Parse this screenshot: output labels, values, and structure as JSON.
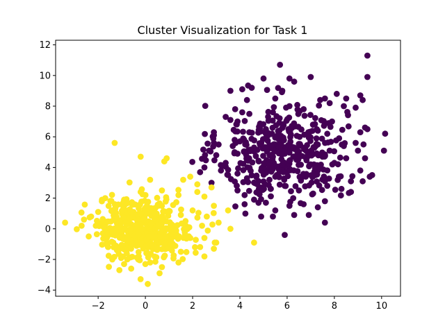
{
  "chart_data": {
    "type": "scatter",
    "title": "Cluster Visualization for Task 1",
    "xlabel": "",
    "ylabel": "",
    "xlim": [
      -3.8,
      10.8
    ],
    "ylim": [
      -4.4,
      12.3
    ],
    "x_ticks": [
      -2,
      0,
      2,
      4,
      6,
      8,
      10
    ],
    "x_tick_labels": [
      "−2",
      "0",
      "2",
      "4",
      "6",
      "8",
      "10"
    ],
    "y_ticks": [
      -4,
      -2,
      0,
      2,
      4,
      6,
      8,
      10,
      12
    ],
    "y_tick_labels": [
      "−4",
      "−2",
      "0",
      "2",
      "4",
      "6",
      "8",
      "10",
      "12"
    ],
    "grid": false,
    "legend": "none",
    "colors": {
      "cluster_a": "#440154",
      "cluster_b": "#fde725"
    },
    "clusters": [
      {
        "color": "#440154",
        "center": [
          5.8,
          5.0
        ],
        "spread": [
          1.35,
          1.55
        ],
        "point_count": 500,
        "points": [
          [
            9.4,
            11.3
          ],
          [
            5.7,
            10.7
          ],
          [
            6.1,
            9.8
          ],
          [
            6.3,
            9.6
          ],
          [
            5.0,
            9.8
          ],
          [
            7.0,
            9.9
          ],
          [
            9.4,
            9.9
          ],
          [
            4.5,
            9.2
          ],
          [
            4.1,
            9.1
          ],
          [
            3.6,
            9.0
          ],
          [
            4.3,
            8.4
          ],
          [
            5.5,
            8.5
          ],
          [
            7.4,
            8.4
          ],
          [
            7.6,
            8.5
          ],
          [
            7.8,
            8.2
          ],
          [
            8.1,
            8.8
          ],
          [
            8.5,
            8.5
          ],
          [
            8.4,
            8.0
          ],
          [
            8.9,
            7.9
          ],
          [
            9.1,
            8.7
          ],
          [
            9.2,
            8.4
          ],
          [
            3.8,
            7.8
          ],
          [
            4.1,
            7.6
          ],
          [
            4.4,
            7.5
          ],
          [
            5.4,
            7.6
          ],
          [
            6.1,
            8.0
          ],
          [
            6.7,
            7.8
          ],
          [
            7.9,
            7.0
          ],
          [
            9.1,
            6.3
          ],
          [
            9.4,
            6.5
          ],
          [
            2.9,
            6.3
          ],
          [
            2.9,
            6.1
          ],
          [
            3.4,
            7.3
          ],
          [
            3.6,
            7.1
          ],
          [
            3.9,
            7.0
          ],
          [
            4.4,
            6.3
          ],
          [
            5.1,
            6.5
          ],
          [
            6.2,
            6.7
          ],
          [
            6.9,
            6.3
          ],
          [
            7.3,
            6.4
          ],
          [
            7.7,
            6.2
          ],
          [
            8.2,
            5.9
          ],
          [
            8.9,
            5.6
          ],
          [
            9.3,
            6.6
          ],
          [
            2.9,
            5.6
          ],
          [
            3.1,
            5.5
          ],
          [
            3.7,
            5.4
          ],
          [
            4.0,
            5.7
          ],
          [
            4.6,
            5.3
          ],
          [
            5.2,
            5.2
          ],
          [
            5.7,
            5.6
          ],
          [
            6.3,
            5.3
          ],
          [
            6.8,
            5.1
          ],
          [
            7.3,
            5.5
          ],
          [
            7.8,
            5.1
          ],
          [
            8.4,
            5.4
          ],
          [
            9.0,
            5.1
          ],
          [
            9.3,
            4.6
          ],
          [
            10.1,
            5.1
          ],
          [
            2.5,
            4.0
          ],
          [
            2.7,
            5.1
          ],
          [
            3.0,
            4.8
          ],
          [
            3.4,
            4.3
          ],
          [
            3.9,
            4.9
          ],
          [
            4.3,
            4.5
          ],
          [
            4.8,
            4.4
          ],
          [
            5.4,
            4.7
          ],
          [
            5.9,
            4.9
          ],
          [
            6.4,
            4.5
          ],
          [
            7.0,
            4.2
          ],
          [
            7.5,
            4.7
          ],
          [
            8.0,
            4.3
          ],
          [
            8.5,
            4.6
          ],
          [
            9.1,
            3.8
          ],
          [
            9.5,
            3.4
          ],
          [
            9.6,
            3.5
          ],
          [
            3.2,
            3.8
          ],
          [
            3.5,
            3.5
          ],
          [
            3.9,
            3.6
          ],
          [
            4.3,
            3.3
          ],
          [
            4.9,
            3.8
          ],
          [
            5.5,
            3.4
          ],
          [
            6.0,
            3.7
          ],
          [
            6.6,
            3.3
          ],
          [
            7.2,
            3.5
          ],
          [
            7.6,
            3.1
          ],
          [
            8.2,
            3.4
          ],
          [
            8.7,
            3.1
          ],
          [
            9.2,
            3.1
          ],
          [
            2.8,
            3.0
          ],
          [
            3.9,
            2.5
          ],
          [
            4.2,
            2.2
          ],
          [
            4.8,
            2.4
          ],
          [
            5.3,
            2.6
          ],
          [
            5.9,
            2.8
          ],
          [
            6.5,
            2.5
          ],
          [
            7.1,
            2.3
          ],
          [
            7.7,
            2.8
          ],
          [
            8.3,
            2.6
          ],
          [
            8.7,
            2.4
          ],
          [
            4.2,
            1.6
          ],
          [
            4.6,
            1.9
          ],
          [
            5.1,
            1.7
          ],
          [
            5.5,
            1.2
          ],
          [
            6.1,
            1.5
          ],
          [
            6.7,
            1.6
          ],
          [
            7.3,
            1.4
          ],
          [
            7.6,
            1.8
          ],
          [
            4.9,
            0.8
          ],
          [
            5.4,
            0.8
          ],
          [
            6.3,
            0.9
          ],
          [
            7.6,
            0.4
          ],
          [
            5.9,
            -0.4
          ]
        ]
      },
      {
        "color": "#fde725",
        "center": [
          0.0,
          0.0
        ],
        "spread": [
          1.0,
          1.0
        ],
        "point_count": 500,
        "points": [
          [
            -1.3,
            5.6
          ],
          [
            -0.2,
            4.7
          ],
          [
            0.9,
            4.6
          ],
          [
            0.8,
            4.4
          ],
          [
            0.2,
            3.2
          ],
          [
            1.6,
            3.2
          ],
          [
            1.9,
            3.4
          ],
          [
            2.2,
            2.9
          ],
          [
            2.8,
            2.7
          ],
          [
            -1.7,
            2.0
          ],
          [
            -0.9,
            1.9
          ],
          [
            -0.2,
            2.4
          ],
          [
            0.7,
            2.5
          ],
          [
            1.4,
            2.2
          ],
          [
            2.2,
            2.4
          ],
          [
            2.5,
            2.1
          ],
          [
            2.9,
            1.5
          ],
          [
            3.5,
            1.2
          ],
          [
            -2.3,
            0.8
          ],
          [
            -2.0,
            1.1
          ],
          [
            -1.4,
            1.2
          ],
          [
            -0.8,
            1.0
          ],
          [
            0.3,
            1.3
          ],
          [
            0.9,
            1.1
          ],
          [
            1.5,
            0.9
          ],
          [
            2.0,
            1.2
          ],
          [
            2.6,
            0.8
          ],
          [
            3.1,
            0.4
          ],
          [
            -3.4,
            0.4
          ],
          [
            -2.6,
            0.6
          ],
          [
            -2.1,
            0.2
          ],
          [
            -1.7,
            0.3
          ],
          [
            -1.1,
            0.5
          ],
          [
            -0.6,
            0.3
          ],
          [
            0.0,
            0.4
          ],
          [
            0.5,
            0.1
          ],
          [
            1.1,
            0.3
          ],
          [
            1.7,
            0.5
          ],
          [
            2.4,
            0.2
          ],
          [
            3.6,
            0.0
          ],
          [
            -2.7,
            0.2
          ],
          [
            -2.4,
            -0.5
          ],
          [
            -1.8,
            -0.3
          ],
          [
            -1.3,
            -0.2
          ],
          [
            -0.9,
            -0.6
          ],
          [
            -0.3,
            -0.4
          ],
          [
            0.2,
            -0.1
          ],
          [
            0.8,
            -0.5
          ],
          [
            1.3,
            -0.3
          ],
          [
            1.9,
            -0.6
          ],
          [
            2.5,
            -0.6
          ],
          [
            3.0,
            -0.9
          ],
          [
            -1.6,
            -1.1
          ],
          [
            -1.2,
            -1.4
          ],
          [
            -0.7,
            -1.2
          ],
          [
            -0.1,
            -1.0
          ],
          [
            0.4,
            -1.3
          ],
          [
            1.0,
            -1.1
          ],
          [
            1.5,
            -1.5
          ],
          [
            2.1,
            -1.2
          ],
          [
            2.9,
            -1.3
          ],
          [
            4.6,
            -0.9
          ],
          [
            -1.4,
            -2.0
          ],
          [
            -0.9,
            -2.3
          ],
          [
            -0.3,
            -2.0
          ],
          [
            0.2,
            -2.2
          ],
          [
            0.7,
            -2.5
          ],
          [
            1.4,
            -2.2
          ],
          [
            2.5,
            -1.8
          ],
          [
            -1.1,
            -2.7
          ],
          [
            -0.6,
            -2.6
          ],
          [
            0.0,
            -2.3
          ],
          [
            0.6,
            -2.9
          ],
          [
            0.1,
            -3.6
          ]
        ]
      }
    ]
  }
}
